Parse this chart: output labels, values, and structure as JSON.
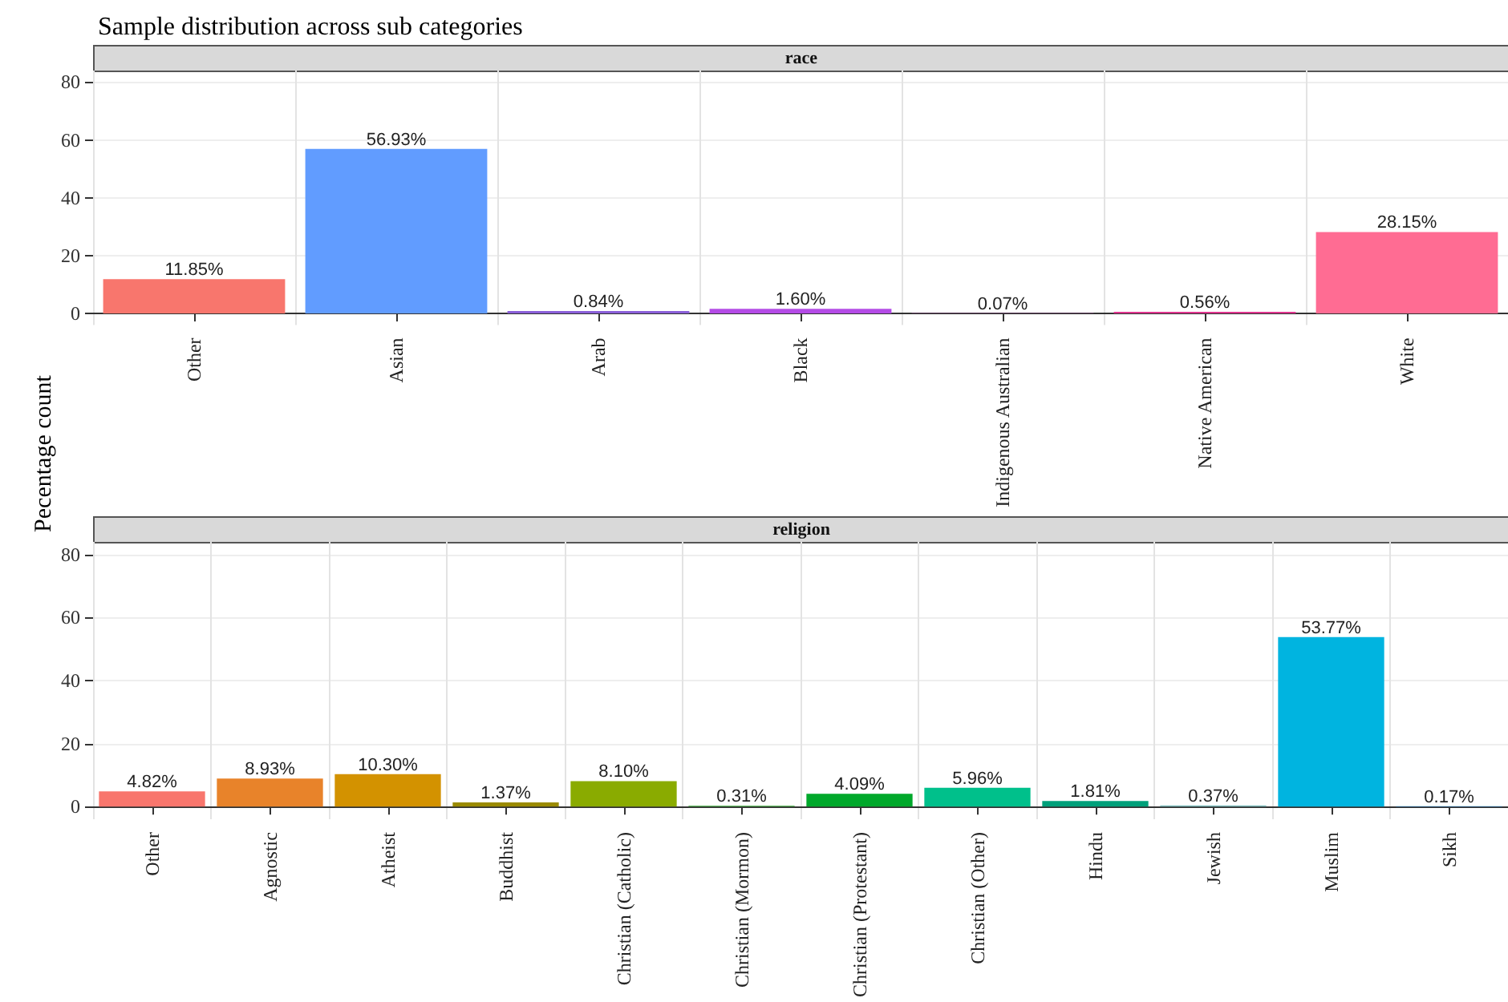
{
  "chart_data": [
    {
      "type": "bar",
      "title": "Sample distribution across sub categories",
      "subtitle": "race",
      "ylabel": "Pecentage count",
      "categories": [
        "Other",
        "Asian",
        "Arab",
        "Black",
        "Indigenous Australian",
        "Native American",
        "White"
      ],
      "values": [
        11.85,
        56.93,
        0.84,
        1.6,
        0.07,
        0.56,
        28.15
      ],
      "value_labels": [
        "11.85%",
        "56.93%",
        "0.84%",
        "1.60%",
        "0.07%",
        "0.56%",
        "28.15%"
      ],
      "colors": [
        "#f8766d",
        "#619cff",
        "#8a5fd8",
        "#b44be6",
        "#d14fc8",
        "#e0348e",
        "#ff6c93"
      ],
      "ylim": [
        -4,
        84
      ],
      "yticks": [
        0,
        20,
        40,
        60,
        80
      ],
      "grid": true
    },
    {
      "type": "bar",
      "subtitle": "religion",
      "categories": [
        "Other",
        "Agnostic",
        "Atheist",
        "Buddhist",
        "Christian (Catholic)",
        "Christian (Mormon)",
        "Christian (Protestant)",
        "Christian (Other)",
        "Hindu",
        "Jewish",
        "Muslim",
        "Sikh"
      ],
      "values": [
        4.82,
        8.93,
        10.3,
        1.37,
        8.1,
        0.31,
        4.09,
        5.96,
        1.81,
        0.37,
        53.77,
        0.17
      ],
      "value_labels": [
        "4.82%",
        "8.93%",
        "10.30%",
        "1.37%",
        "8.10%",
        "0.31%",
        "4.09%",
        "5.96%",
        "1.81%",
        "0.37%",
        "53.77%",
        "0.17%"
      ],
      "colors": [
        "#f8766d",
        "#e8832a",
        "#d39200",
        "#9a8a00",
        "#8aab00",
        "#5bb85a",
        "#00a82b",
        "#00c08b",
        "#00a07a",
        "#7fbfbf",
        "#00b4e0",
        "#35a2ff"
      ],
      "ylim": [
        -4,
        84
      ],
      "yticks": [
        0,
        20,
        40,
        60,
        80
      ],
      "grid": true
    }
  ]
}
